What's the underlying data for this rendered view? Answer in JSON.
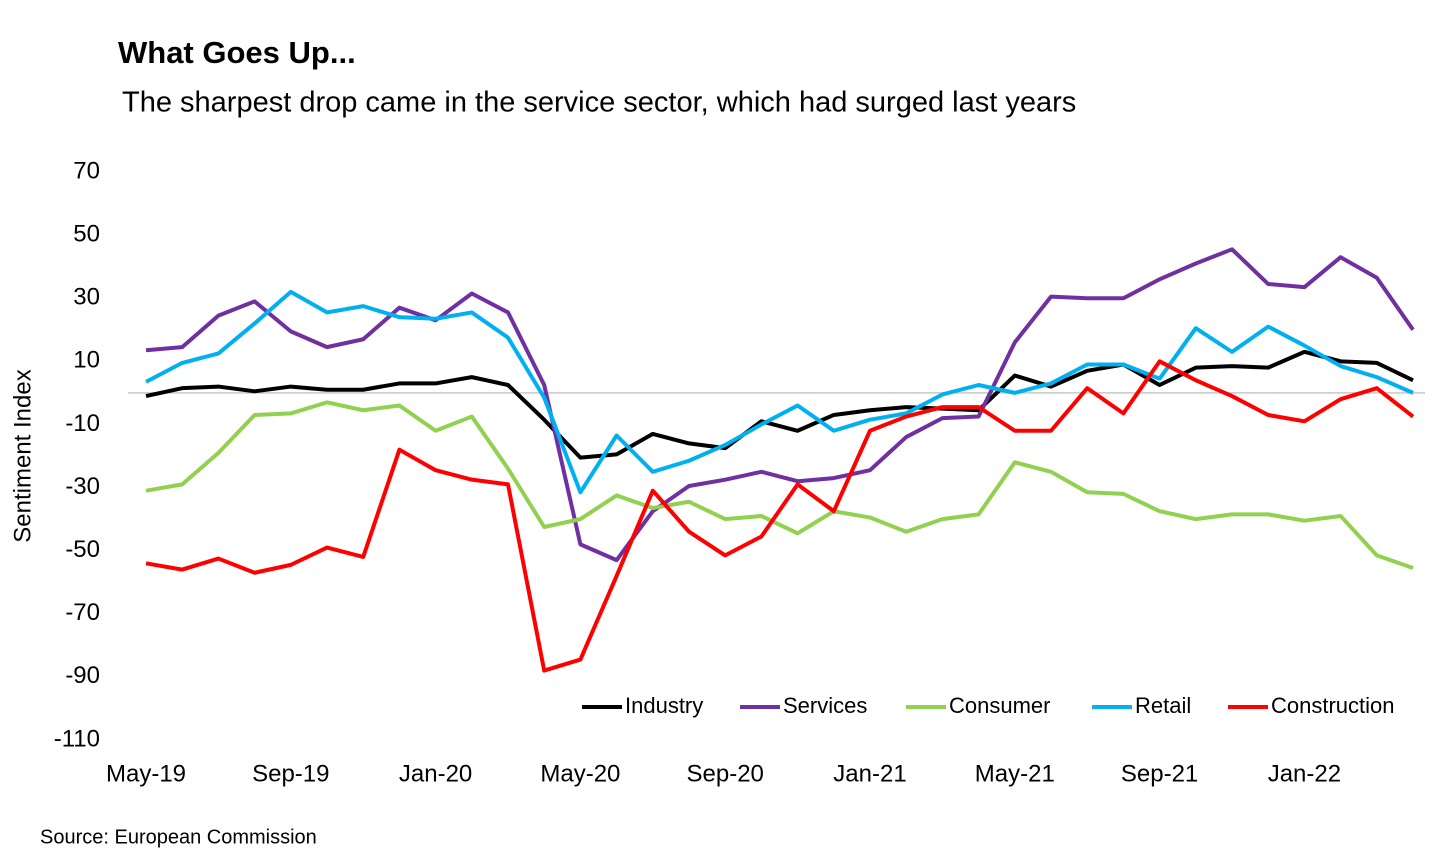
{
  "chart_data": {
    "type": "line",
    "title": "What Goes Up...",
    "subtitle": "The sharpest drop came in the service sector, which had surged last years",
    "y_label": "Sentiment Index",
    "source": "Source: European Commission",
    "categories": [
      "May-19",
      null,
      null,
      null,
      "Sep-19",
      null,
      null,
      null,
      "Jan-20",
      null,
      null,
      null,
      "May-20",
      null,
      null,
      null,
      "Sep-20",
      null,
      null,
      null,
      "Jan-21",
      null,
      null,
      null,
      "May-21",
      null,
      null,
      null,
      "Sep-21",
      null,
      null,
      null,
      "Jan-22",
      null,
      null,
      null
    ],
    "series": [
      {
        "name": "Industry",
        "color": "#000000",
        "values": [
          -1,
          1.5,
          2,
          0.5,
          2,
          1,
          1,
          3,
          3,
          5,
          2.5,
          -8.5,
          -20.5,
          -19.5,
          -13,
          -16,
          -17.5,
          -9,
          -12,
          -7,
          -5.5,
          -4.5,
          -5,
          -5.5,
          5.5,
          2,
          7,
          9,
          2.5,
          8,
          8.5,
          8,
          13,
          10,
          9.5,
          4
        ]
      },
      {
        "name": "Services",
        "color": "#7030a0",
        "values": [
          13.5,
          14.5,
          24.5,
          29,
          19.5,
          14.5,
          17,
          27,
          23,
          31.5,
          25.5,
          2.5,
          -48,
          -53,
          -37.5,
          -29.5,
          -27.5,
          -25,
          -28,
          -27,
          -24.5,
          -14,
          -8,
          -7.5,
          16,
          30.5,
          30,
          30,
          36,
          41,
          45.5,
          34.5,
          33.5,
          43,
          36.5,
          20
        ]
      },
      {
        "name": "Consumer",
        "color": "#92d050",
        "values": [
          -31,
          -29,
          -19,
          -7,
          -6.5,
          -3,
          -5.5,
          -4,
          -12,
          -7.5,
          -24,
          -42.5,
          -40,
          -32.5,
          -36.5,
          -34.5,
          -40,
          -39,
          -44.5,
          -37.5,
          -39.5,
          -44,
          -40,
          -38.5,
          -22,
          -25,
          -31.5,
          -32,
          -37.5,
          -40,
          -38.5,
          -38.5,
          -40.5,
          -39,
          -51.5,
          -55.5
        ]
      },
      {
        "name": "Retail",
        "color": "#00b0f0",
        "values": [
          3.5,
          9.5,
          12.5,
          22,
          32,
          25.5,
          27.5,
          24,
          23.5,
          25.5,
          17.5,
          -1.5,
          -31.5,
          -13.5,
          -25,
          -21.5,
          -16.5,
          -10,
          -4,
          -12,
          -8.5,
          -6.5,
          -0.5,
          2.5,
          0,
          3,
          9,
          9,
          4.5,
          20.5,
          13,
          21,
          15,
          8.5,
          5,
          0
        ]
      },
      {
        "name": "Construction",
        "color": "#ff0000",
        "values": [
          -54,
          -56,
          -52.5,
          -57,
          -54.5,
          -49,
          -52,
          -18,
          -24.5,
          -27.5,
          -29,
          -88,
          -84.5,
          -58,
          -31,
          -44,
          -51.5,
          -45.5,
          -29,
          -37.5,
          -12,
          -7.5,
          -4.5,
          -4.5,
          -12,
          -12,
          1.5,
          -6.5,
          10,
          4,
          -1,
          -7,
          -9,
          -2,
          1.5,
          -7.5
        ]
      }
    ],
    "ylim": [
      -110,
      70
    ],
    "yticks": [
      -110,
      -90,
      -70,
      -50,
      -30,
      -10,
      10,
      30,
      50,
      70
    ],
    "grid": false,
    "legend": "lower right"
  }
}
